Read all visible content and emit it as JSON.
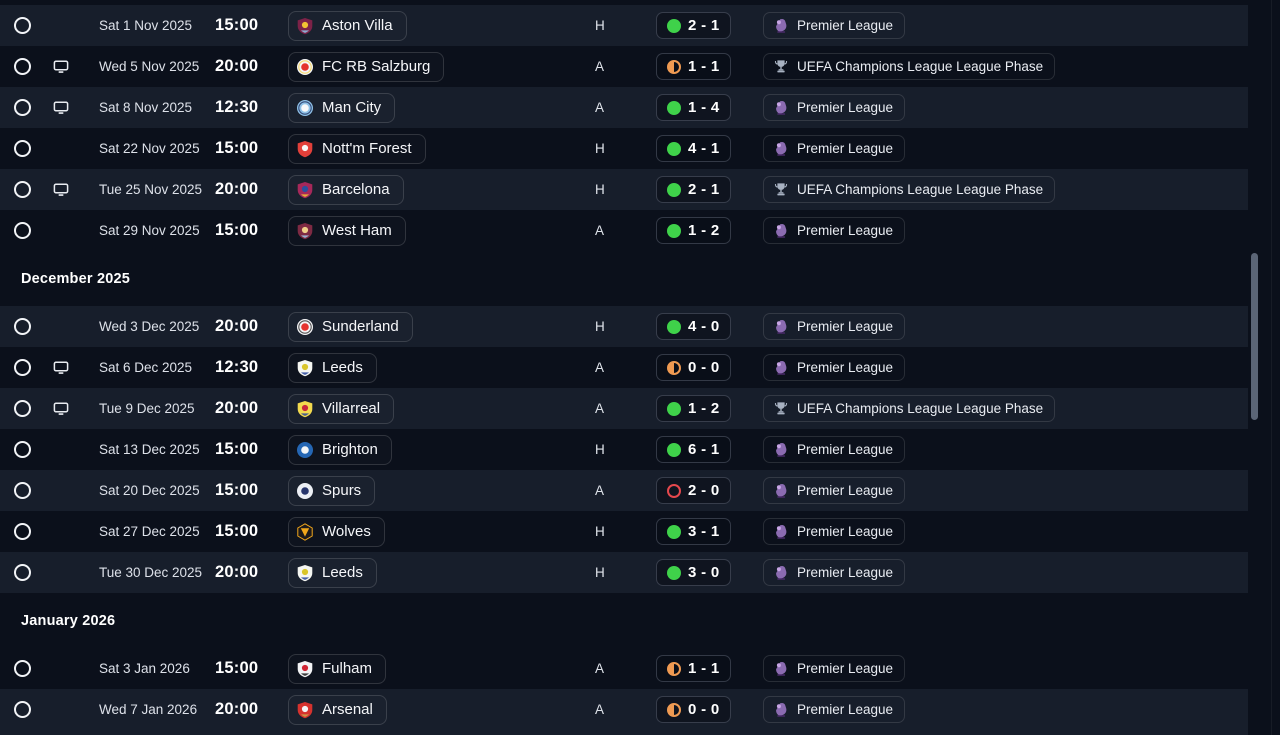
{
  "theme": {
    "bg_dark": "#0b101b",
    "bg_light_row": "#171e2b",
    "win_color": "#3fd24a",
    "draw_color": "#ef9a52",
    "loss_color": "#e5484d"
  },
  "competitions": {
    "pl": {
      "label": "Premier League",
      "icon": "premier-league-icon"
    },
    "ucl": {
      "label": "UEFA Champions League League Phase",
      "icon": "ucl-trophy-icon"
    }
  },
  "teams": {
    "Aston Villa": {
      "shape": "shield",
      "primary": "#7d2248",
      "secondary": "#f2c233",
      "accent": "#8fc3ea"
    },
    "FC RB Salzburg": {
      "shape": "circle",
      "primary": "#f4f4f6",
      "secondary": "#e4322e",
      "accent": "#f8d24a"
    },
    "Man City": {
      "shape": "circle",
      "primary": "#8fc1e7",
      "secondary": "#f6f8fa",
      "accent": "#1c2c5b"
    },
    "Nott'm Forest": {
      "shape": "shield",
      "primary": "#e2403a",
      "secondary": "#f7f7f7",
      "accent": "#e2403a"
    },
    "Barcelona": {
      "shape": "shield",
      "primary": "#a6285a",
      "secondary": "#2a4f9e",
      "accent": "#f2c233"
    },
    "West Ham": {
      "shape": "shield",
      "primary": "#7e2a43",
      "secondary": "#f0d08a",
      "accent": "#9fc7e8"
    },
    "Sunderland": {
      "shape": "circle",
      "primary": "#f3f3f5",
      "secondary": "#e5332f",
      "accent": "#2b2b2b"
    },
    "Leeds": {
      "shape": "shield",
      "primary": "#f5f6f2",
      "secondary": "#d9c52a",
      "accent": "#27459c"
    },
    "Villarreal": {
      "shape": "shield",
      "primary": "#f3da4e",
      "secondary": "#c8283c",
      "accent": "#2b4a9b"
    },
    "Brighton": {
      "shape": "circle",
      "primary": "#2567b4",
      "secondary": "#f4f6f8",
      "accent": "#2567b4"
    },
    "Spurs": {
      "shape": "circle",
      "primary": "#eceff4",
      "secondary": "#27356b",
      "accent": "#eceff4"
    },
    "Wolves": {
      "shape": "hex",
      "primary": "#1d1a1b",
      "secondary": "#f2a71b",
      "accent": "#1d1a1b"
    },
    "Fulham": {
      "shape": "shield",
      "primary": "#f2f3f5",
      "secondary": "#cf2433",
      "accent": "#1c1c1c"
    },
    "Arsenal": {
      "shape": "shield",
      "primary": "#d6322e",
      "secondary": "#f4f4f6",
      "accent": "#caa64a"
    }
  },
  "sections": [
    {
      "label": null,
      "rows": [
        {
          "tv": false,
          "date": "Sat 1 Nov 2025",
          "time": "15:00",
          "team": "Aston Villa",
          "venue": "H",
          "score": "2 - 1",
          "outcome": "win",
          "comp": "pl"
        },
        {
          "tv": true,
          "date": "Wed 5 Nov 2025",
          "time": "20:00",
          "team": "FC RB Salzburg",
          "venue": "A",
          "score": "1 - 1",
          "outcome": "draw",
          "comp": "ucl"
        },
        {
          "tv": true,
          "date": "Sat 8 Nov 2025",
          "time": "12:30",
          "team": "Man City",
          "venue": "A",
          "score": "1 - 4",
          "outcome": "win",
          "comp": "pl"
        },
        {
          "tv": false,
          "date": "Sat 22 Nov 2025",
          "time": "15:00",
          "team": "Nott'm Forest",
          "venue": "H",
          "score": "4 - 1",
          "outcome": "win",
          "comp": "pl"
        },
        {
          "tv": true,
          "date": "Tue 25 Nov 2025",
          "time": "20:00",
          "team": "Barcelona",
          "venue": "H",
          "score": "2 - 1",
          "outcome": "win",
          "comp": "ucl"
        },
        {
          "tv": false,
          "date": "Sat 29 Nov 2025",
          "time": "15:00",
          "team": "West Ham",
          "venue": "A",
          "score": "1 - 2",
          "outcome": "win",
          "comp": "pl"
        }
      ]
    },
    {
      "label": "December 2025",
      "rows": [
        {
          "tv": false,
          "date": "Wed 3 Dec 2025",
          "time": "20:00",
          "team": "Sunderland",
          "venue": "H",
          "score": "4 - 0",
          "outcome": "win",
          "comp": "pl"
        },
        {
          "tv": true,
          "date": "Sat 6 Dec 2025",
          "time": "12:30",
          "team": "Leeds",
          "venue": "A",
          "score": "0 - 0",
          "outcome": "draw",
          "comp": "pl"
        },
        {
          "tv": true,
          "date": "Tue 9 Dec 2025",
          "time": "20:00",
          "team": "Villarreal",
          "venue": "A",
          "score": "1 - 2",
          "outcome": "win",
          "comp": "ucl"
        },
        {
          "tv": false,
          "date": "Sat 13 Dec 2025",
          "time": "15:00",
          "team": "Brighton",
          "venue": "H",
          "score": "6 - 1",
          "outcome": "win",
          "comp": "pl"
        },
        {
          "tv": false,
          "date": "Sat 20 Dec 2025",
          "time": "15:00",
          "team": "Spurs",
          "venue": "A",
          "score": "2 - 0",
          "outcome": "loss",
          "comp": "pl"
        },
        {
          "tv": false,
          "date": "Sat 27 Dec 2025",
          "time": "15:00",
          "team": "Wolves",
          "venue": "H",
          "score": "3 - 1",
          "outcome": "win",
          "comp": "pl"
        },
        {
          "tv": false,
          "date": "Tue 30 Dec 2025",
          "time": "20:00",
          "team": "Leeds",
          "venue": "H",
          "score": "3 - 0",
          "outcome": "win",
          "comp": "pl"
        }
      ]
    },
    {
      "label": "January 2026",
      "rows": [
        {
          "tv": false,
          "date": "Sat 3 Jan 2026",
          "time": "15:00",
          "team": "Fulham",
          "venue": "A",
          "score": "1 - 1",
          "outcome": "draw",
          "comp": "pl"
        },
        {
          "tv": false,
          "date": "Wed 7 Jan 2026",
          "time": "20:00",
          "team": "Arsenal",
          "venue": "A",
          "score": "0 - 0",
          "outcome": "draw",
          "comp": "pl"
        }
      ]
    }
  ]
}
